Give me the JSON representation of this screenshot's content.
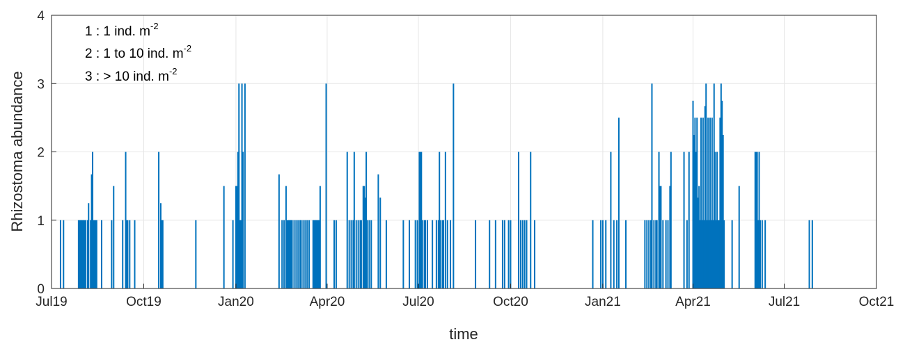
{
  "chart_data": {
    "type": "bar",
    "xlabel": "time",
    "ylabel": "Rhizostoma abundance",
    "xlim": [
      "2019-07-01",
      "2021-10-01"
    ],
    "ylim": [
      0,
      4
    ],
    "x_ticks": [
      {
        "date": "2019-07-01",
        "label": "Jul19"
      },
      {
        "date": "2019-10-01",
        "label": "Oct19"
      },
      {
        "date": "2020-01-01",
        "label": "Jan20"
      },
      {
        "date": "2020-04-01",
        "label": "Apr20"
      },
      {
        "date": "2020-07-01",
        "label": "Jul20"
      },
      {
        "date": "2020-10-01",
        "label": "Oct20"
      },
      {
        "date": "2021-01-01",
        "label": "Jan21"
      },
      {
        "date": "2021-04-01",
        "label": "Apr21"
      },
      {
        "date": "2021-07-01",
        "label": "Jul21"
      },
      {
        "date": "2021-10-01",
        "label": "Oct21"
      }
    ],
    "y_ticks": [
      "0",
      "1",
      "2",
      "3",
      "4"
    ],
    "grid": true,
    "bar_color": "#0072BD",
    "legend": [
      {
        "text": "1 : 1 ind. m",
        "sup": "-2"
      },
      {
        "text": "2 : 1 to 10 ind. m",
        "sup": "-2"
      },
      {
        "text": "3 : > 10 ind. m",
        "sup": "-2"
      }
    ],
    "legend_position": "top-left",
    "points": [
      [
        "2019-07-10",
        1
      ],
      [
        "2019-07-13",
        1
      ],
      [
        "2019-07-28",
        1
      ],
      [
        "2019-07-29",
        1
      ],
      [
        "2019-07-30",
        1
      ],
      [
        "2019-07-31",
        1
      ],
      [
        "2019-08-01",
        1
      ],
      [
        "2019-08-02",
        1
      ],
      [
        "2019-08-03",
        1
      ],
      [
        "2019-08-04",
        1
      ],
      [
        "2019-08-06",
        1
      ],
      [
        "2019-08-07",
        1.25
      ],
      [
        "2019-08-09",
        1
      ],
      [
        "2019-08-10",
        1.67
      ],
      [
        "2019-08-11",
        2
      ],
      [
        "2019-08-12",
        1
      ],
      [
        "2019-08-13",
        1
      ],
      [
        "2019-08-14",
        1
      ],
      [
        "2019-08-15",
        1
      ],
      [
        "2019-08-20",
        1
      ],
      [
        "2019-08-30",
        1
      ],
      [
        "2019-09-01",
        1.5
      ],
      [
        "2019-09-10",
        1
      ],
      [
        "2019-09-13",
        2
      ],
      [
        "2019-09-14",
        1
      ],
      [
        "2019-09-15",
        1
      ],
      [
        "2019-09-17",
        1
      ],
      [
        "2019-09-22",
        1
      ],
      [
        "2019-10-16",
        2
      ],
      [
        "2019-10-18",
        1.25
      ],
      [
        "2019-10-19",
        1
      ],
      [
        "2019-10-20",
        1
      ],
      [
        "2019-11-22",
        1
      ],
      [
        "2019-12-20",
        1.5
      ],
      [
        "2019-12-29",
        1
      ],
      [
        "2020-01-01",
        1.5
      ],
      [
        "2020-01-02",
        1.5
      ],
      [
        "2020-01-03",
        2
      ],
      [
        "2020-01-04",
        3
      ],
      [
        "2020-01-05",
        1
      ],
      [
        "2020-01-06",
        1
      ],
      [
        "2020-01-07",
        3
      ],
      [
        "2020-01-08",
        2
      ],
      [
        "2020-01-10",
        3
      ],
      [
        "2020-02-13",
        1.67
      ],
      [
        "2020-02-16",
        1
      ],
      [
        "2020-02-18",
        1
      ],
      [
        "2020-02-20",
        1.5
      ],
      [
        "2020-02-21",
        1
      ],
      [
        "2020-02-22",
        1
      ],
      [
        "2020-02-23",
        1
      ],
      [
        "2020-02-24",
        1
      ],
      [
        "2020-02-25",
        1
      ],
      [
        "2020-02-26",
        1
      ],
      [
        "2020-02-28",
        1
      ],
      [
        "2020-03-01",
        1
      ],
      [
        "2020-03-03",
        1
      ],
      [
        "2020-03-05",
        1
      ],
      [
        "2020-03-06",
        1
      ],
      [
        "2020-03-08",
        1
      ],
      [
        "2020-03-10",
        1
      ],
      [
        "2020-03-12",
        1
      ],
      [
        "2020-03-14",
        1
      ],
      [
        "2020-03-18",
        1
      ],
      [
        "2020-03-19",
        1
      ],
      [
        "2020-03-20",
        1
      ],
      [
        "2020-03-21",
        1
      ],
      [
        "2020-03-22",
        1
      ],
      [
        "2020-03-23",
        1
      ],
      [
        "2020-03-24",
        1
      ],
      [
        "2020-03-25",
        1.5
      ],
      [
        "2020-03-31",
        3
      ],
      [
        "2020-04-08",
        1
      ],
      [
        "2020-04-10",
        1
      ],
      [
        "2020-04-21",
        2
      ],
      [
        "2020-04-23",
        1
      ],
      [
        "2020-04-25",
        1
      ],
      [
        "2020-04-27",
        1
      ],
      [
        "2020-04-28",
        2
      ],
      [
        "2020-04-30",
        1
      ],
      [
        "2020-05-02",
        1
      ],
      [
        "2020-05-04",
        1
      ],
      [
        "2020-05-05",
        1
      ],
      [
        "2020-05-07",
        1.5
      ],
      [
        "2020-05-08",
        1.5
      ],
      [
        "2020-05-09",
        1.33
      ],
      [
        "2020-05-10",
        2
      ],
      [
        "2020-05-11",
        1
      ],
      [
        "2020-05-13",
        1
      ],
      [
        "2020-05-15",
        1
      ],
      [
        "2020-05-22",
        1.67
      ],
      [
        "2020-05-24",
        1.33
      ],
      [
        "2020-05-30",
        1
      ],
      [
        "2020-06-16",
        1
      ],
      [
        "2020-06-22",
        1
      ],
      [
        "2020-06-28",
        1
      ],
      [
        "2020-06-30",
        1
      ],
      [
        "2020-07-02",
        2
      ],
      [
        "2020-07-03",
        2
      ],
      [
        "2020-07-04",
        2
      ],
      [
        "2020-07-05",
        1
      ],
      [
        "2020-07-07",
        1
      ],
      [
        "2020-07-08",
        1
      ],
      [
        "2020-07-10",
        1
      ],
      [
        "2020-07-15",
        1
      ],
      [
        "2020-07-19",
        1
      ],
      [
        "2020-07-21",
        1
      ],
      [
        "2020-07-22",
        2
      ],
      [
        "2020-07-23",
        1
      ],
      [
        "2020-07-25",
        1
      ],
      [
        "2020-07-26",
        1
      ],
      [
        "2020-07-28",
        2
      ],
      [
        "2020-07-30",
        1
      ],
      [
        "2020-08-02",
        1
      ],
      [
        "2020-08-05",
        3
      ],
      [
        "2020-08-27",
        1
      ],
      [
        "2020-09-10",
        1
      ],
      [
        "2020-09-16",
        1
      ],
      [
        "2020-09-23",
        1
      ],
      [
        "2020-09-25",
        1
      ],
      [
        "2020-09-29",
        1
      ],
      [
        "2020-10-01",
        1
      ],
      [
        "2020-10-09",
        2
      ],
      [
        "2020-10-11",
        1
      ],
      [
        "2020-10-13",
        1
      ],
      [
        "2020-10-15",
        1
      ],
      [
        "2020-10-17",
        1
      ],
      [
        "2020-10-21",
        2
      ],
      [
        "2020-10-25",
        1
      ],
      [
        "2020-12-22",
        1
      ],
      [
        "2020-12-30",
        1
      ],
      [
        "2021-01-01",
        1
      ],
      [
        "2021-01-04",
        1
      ],
      [
        "2021-01-09",
        2
      ],
      [
        "2021-01-12",
        1
      ],
      [
        "2021-01-15",
        1
      ],
      [
        "2021-01-17",
        2.5
      ],
      [
        "2021-01-24",
        1
      ],
      [
        "2021-02-12",
        1
      ],
      [
        "2021-02-14",
        1
      ],
      [
        "2021-02-16",
        1
      ],
      [
        "2021-02-18",
        1
      ],
      [
        "2021-02-19",
        3
      ],
      [
        "2021-02-21",
        1
      ],
      [
        "2021-02-23",
        1
      ],
      [
        "2021-02-24",
        1
      ],
      [
        "2021-02-26",
        2
      ],
      [
        "2021-02-27",
        1.5
      ],
      [
        "2021-02-28",
        1.5
      ],
      [
        "2021-03-02",
        1
      ],
      [
        "2021-03-05",
        1
      ],
      [
        "2021-03-07",
        1
      ],
      [
        "2021-03-09",
        1.5
      ],
      [
        "2021-03-10",
        2
      ],
      [
        "2021-03-23",
        2
      ],
      [
        "2021-03-26",
        1
      ],
      [
        "2021-03-28",
        2
      ],
      [
        "2021-04-01",
        2.75
      ],
      [
        "2021-04-02",
        2.25
      ],
      [
        "2021-04-03",
        2.5
      ],
      [
        "2021-04-04",
        2
      ],
      [
        "2021-04-05",
        2.5
      ],
      [
        "2021-04-06",
        1.33
      ],
      [
        "2021-04-07",
        1.5
      ],
      [
        "2021-04-08",
        1
      ],
      [
        "2021-04-09",
        2.5
      ],
      [
        "2021-04-10",
        1
      ],
      [
        "2021-04-11",
        2.5
      ],
      [
        "2021-04-12",
        1
      ],
      [
        "2021-04-13",
        2.67
      ],
      [
        "2021-04-14",
        3
      ],
      [
        "2021-04-15",
        1
      ],
      [
        "2021-04-16",
        2.5
      ],
      [
        "2021-04-17",
        1
      ],
      [
        "2021-04-18",
        2.5
      ],
      [
        "2021-04-19",
        1
      ],
      [
        "2021-04-20",
        2.5
      ],
      [
        "2021-04-21",
        1
      ],
      [
        "2021-04-22",
        3
      ],
      [
        "2021-04-23",
        2
      ],
      [
        "2021-04-24",
        1
      ],
      [
        "2021-04-25",
        2
      ],
      [
        "2021-04-26",
        1
      ],
      [
        "2021-04-27",
        1
      ],
      [
        "2021-04-28",
        2.5
      ],
      [
        "2021-04-29",
        3
      ],
      [
        "2021-04-30",
        2.75
      ],
      [
        "2021-05-01",
        2.25
      ],
      [
        "2021-05-02",
        1
      ],
      [
        "2021-05-10",
        1
      ],
      [
        "2021-05-17",
        1.5
      ],
      [
        "2021-06-02",
        2
      ],
      [
        "2021-06-03",
        2
      ],
      [
        "2021-06-04",
        2
      ],
      [
        "2021-06-05",
        1
      ],
      [
        "2021-06-06",
        2
      ],
      [
        "2021-06-07",
        1
      ],
      [
        "2021-06-09",
        1
      ],
      [
        "2021-06-12",
        1
      ],
      [
        "2021-07-26",
        1
      ],
      [
        "2021-07-29",
        1
      ]
    ]
  }
}
